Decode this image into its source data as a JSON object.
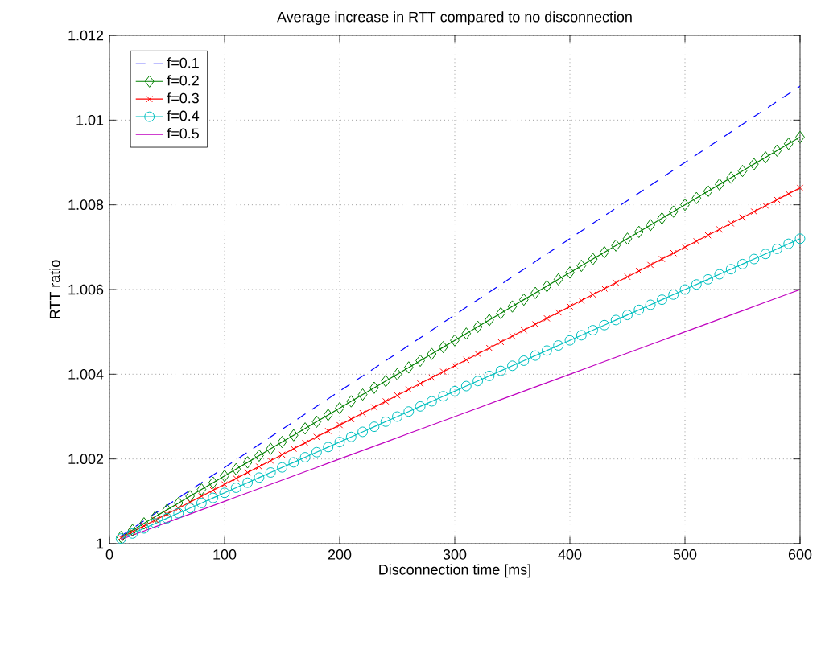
{
  "chart_data": {
    "type": "line",
    "title": "Average increase in RTT compared to no disconnection",
    "xlabel": "Disconnection time [ms]",
    "ylabel": "RTT ratio",
    "x": [
      10,
      20,
      30,
      40,
      50,
      60,
      70,
      80,
      90,
      100,
      110,
      120,
      130,
      140,
      150,
      160,
      170,
      180,
      190,
      200,
      210,
      220,
      230,
      240,
      250,
      260,
      270,
      280,
      290,
      300,
      310,
      320,
      330,
      340,
      350,
      360,
      370,
      380,
      390,
      400,
      410,
      420,
      430,
      440,
      450,
      460,
      470,
      480,
      490,
      500,
      510,
      520,
      530,
      540,
      550,
      560,
      570,
      580,
      590,
      600
    ],
    "series": [
      {
        "name": "f=0.1",
        "color": "#0000ff",
        "line_style": "dashed",
        "marker": "none",
        "values": [
          1.00018,
          1.00036,
          1.00054,
          1.00072,
          1.0009,
          1.00108,
          1.00126,
          1.00144,
          1.00162,
          1.0018,
          1.00198,
          1.00216,
          1.00234,
          1.00252,
          1.0027,
          1.00288,
          1.00306,
          1.00324,
          1.00342,
          1.0036,
          1.00378,
          1.00396,
          1.00414,
          1.00432,
          1.0045,
          1.00468,
          1.00486,
          1.00504,
          1.00522,
          1.0054,
          1.00558,
          1.00576,
          1.00594,
          1.00612,
          1.0063,
          1.00648,
          1.00666,
          1.00684,
          1.00702,
          1.0072,
          1.00738,
          1.00756,
          1.00774,
          1.00792,
          1.0081,
          1.00828,
          1.00846,
          1.00864,
          1.00882,
          1.009,
          1.00918,
          1.00936,
          1.00954,
          1.00972,
          1.0099,
          1.01008,
          1.01026,
          1.01044,
          1.01062,
          1.0108
        ]
      },
      {
        "name": "f=0.2",
        "color": "#008000",
        "line_style": "solid",
        "marker": "diamond",
        "values": [
          1.00016,
          1.00032,
          1.00048,
          1.00064,
          1.0008,
          1.00096,
          1.00112,
          1.00128,
          1.00144,
          1.0016,
          1.00176,
          1.00192,
          1.00208,
          1.00224,
          1.0024,
          1.00256,
          1.00272,
          1.00288,
          1.00304,
          1.0032,
          1.00336,
          1.00352,
          1.00368,
          1.00384,
          1.004,
          1.00416,
          1.00432,
          1.00448,
          1.00464,
          1.0048,
          1.00496,
          1.00512,
          1.00528,
          1.00544,
          1.0056,
          1.00576,
          1.00592,
          1.00608,
          1.00624,
          1.0064,
          1.00656,
          1.00672,
          1.00688,
          1.00704,
          1.0072,
          1.00736,
          1.00752,
          1.00768,
          1.00784,
          1.008,
          1.00816,
          1.00832,
          1.00848,
          1.00864,
          1.0088,
          1.00896,
          1.00912,
          1.00928,
          1.00944,
          1.0096
        ]
      },
      {
        "name": "f=0.3",
        "color": "#ff0000",
        "line_style": "solid",
        "marker": "cross",
        "values": [
          1.00014,
          1.00028,
          1.00042,
          1.00056,
          1.0007,
          1.00084,
          1.00098,
          1.00112,
          1.00126,
          1.0014,
          1.00154,
          1.00168,
          1.00182,
          1.00196,
          1.0021,
          1.00224,
          1.00238,
          1.00252,
          1.00266,
          1.0028,
          1.00294,
          1.00308,
          1.00322,
          1.00336,
          1.0035,
          1.00364,
          1.00378,
          1.00392,
          1.00406,
          1.0042,
          1.00434,
          1.00448,
          1.00462,
          1.00476,
          1.0049,
          1.00504,
          1.00518,
          1.00532,
          1.00546,
          1.0056,
          1.00574,
          1.00588,
          1.00602,
          1.00616,
          1.0063,
          1.00644,
          1.00658,
          1.00672,
          1.00686,
          1.007,
          1.00714,
          1.00728,
          1.00742,
          1.00756,
          1.0077,
          1.00784,
          1.00798,
          1.00812,
          1.00826,
          1.0084
        ]
      },
      {
        "name": "f=0.4",
        "color": "#00bfbf",
        "line_style": "solid",
        "marker": "circle",
        "values": [
          1.00012,
          1.00024,
          1.00036,
          1.00048,
          1.0006,
          1.00072,
          1.00084,
          1.00096,
          1.00108,
          1.0012,
          1.00132,
          1.00144,
          1.00156,
          1.00168,
          1.0018,
          1.00192,
          1.00204,
          1.00216,
          1.00228,
          1.0024,
          1.00252,
          1.00264,
          1.00276,
          1.00288,
          1.003,
          1.00312,
          1.00324,
          1.00336,
          1.00348,
          1.0036,
          1.00372,
          1.00384,
          1.00396,
          1.00408,
          1.0042,
          1.00432,
          1.00444,
          1.00456,
          1.00468,
          1.0048,
          1.00492,
          1.00504,
          1.00516,
          1.00528,
          1.0054,
          1.00552,
          1.00564,
          1.00576,
          1.00588,
          1.006,
          1.00612,
          1.00624,
          1.00636,
          1.00648,
          1.0066,
          1.00672,
          1.00684,
          1.00696,
          1.00708,
          1.0072
        ]
      },
      {
        "name": "f=0.5",
        "color": "#bf00bf",
        "line_style": "solid",
        "marker": "none",
        "values": [
          1.0001,
          1.0002,
          1.0003,
          1.0004,
          1.0005,
          1.0006,
          1.0007,
          1.0008,
          1.0009,
          1.001,
          1.0011,
          1.0012,
          1.0013,
          1.0014,
          1.0015,
          1.0016,
          1.0017,
          1.0018,
          1.0019,
          1.002,
          1.0021,
          1.0022,
          1.0023,
          1.0024,
          1.0025,
          1.0026,
          1.0027,
          1.0028,
          1.0029,
          1.003,
          1.0031,
          1.0032,
          1.0033,
          1.0034,
          1.0035,
          1.0036,
          1.0037,
          1.0038,
          1.0039,
          1.004,
          1.0041,
          1.0042,
          1.0043,
          1.0044,
          1.0045,
          1.0046,
          1.0047,
          1.0048,
          1.0049,
          1.005,
          1.0051,
          1.0052,
          1.0053,
          1.0054,
          1.0055,
          1.0056,
          1.0057,
          1.0058,
          1.0059,
          1.006
        ]
      }
    ],
    "xlim": [
      0,
      600
    ],
    "xticks": [
      0,
      100,
      200,
      300,
      400,
      500,
      600
    ],
    "ylim": [
      1,
      1.012
    ],
    "yticks": [
      1,
      1.002,
      1.004,
      1.006,
      1.008,
      1.01,
      1.012
    ],
    "grid": true,
    "legend": "top left"
  }
}
